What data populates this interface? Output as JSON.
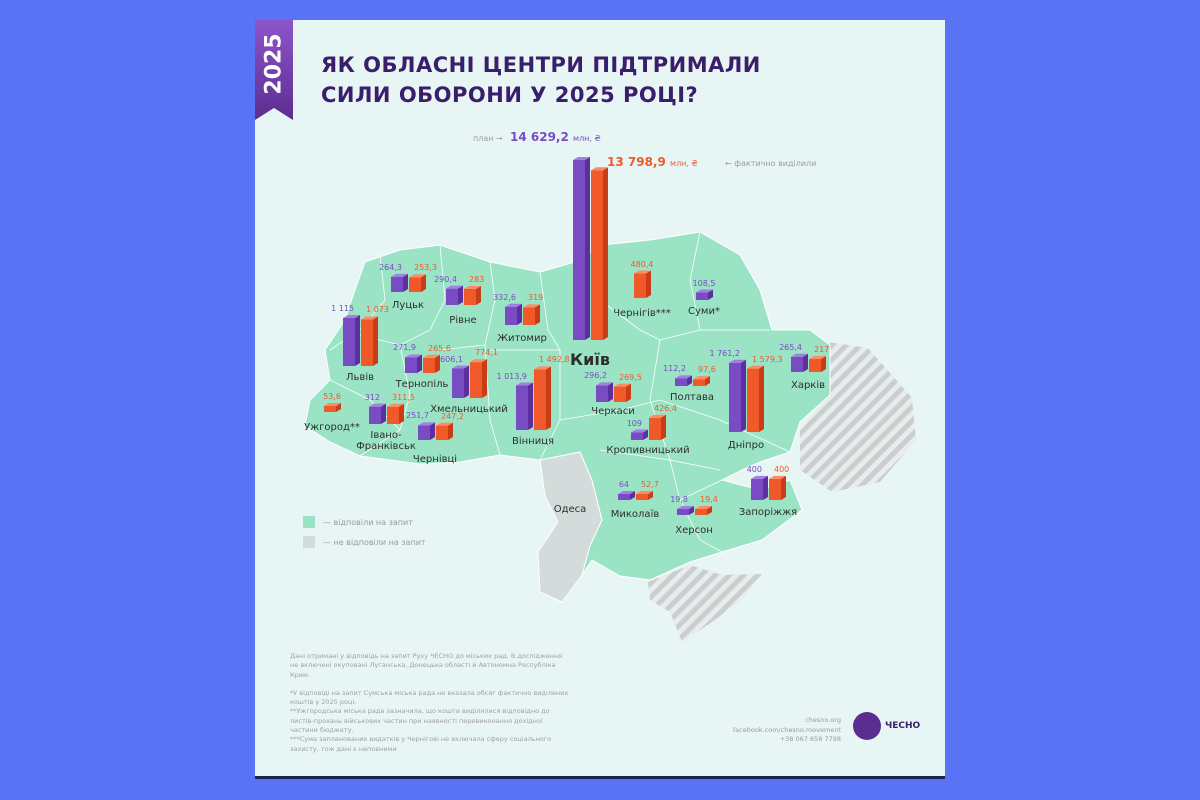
{
  "badge_year": "2025",
  "title": {
    "line1": "ЯК ОБЛАСНІ ЦЕНТРИ ПІДТРИМАЛИ",
    "line2": "СИЛИ ОБОРОНИ У 2025 РОЦІ?"
  },
  "totals": {
    "plan_note": "план →",
    "plan_value": "14 629,2",
    "actual_value": "13 798,9",
    "unit": "млн, ₴",
    "actual_note": "← фактично виділили"
  },
  "colors": {
    "plan": "#7a4cc4",
    "actual": "#f05a2a",
    "responded": "#9ae3c4",
    "not_responded": "#d3dcda",
    "background": "#e7f6f4"
  },
  "legend": [
    {
      "label": "— відповіли на запит",
      "color": "#9ae3c4"
    },
    {
      "label": "— не відповіли на запит",
      "color": "#d3dcda"
    }
  ],
  "non_responding_city": "Одеса",
  "chart_data": {
    "type": "bar",
    "title": "ЯК ОБЛАСНІ ЦЕНТРИ ПІДТРИМАЛИ СИЛИ ОБОРОНИ У 2025 РОЦІ?",
    "categories": [
      "Київ",
      "Луцьк",
      "Рівне",
      "Житомир",
      "Львів",
      "Тернопіль",
      "Хмельницький",
      "Вінниця",
      "Ужгород**",
      "Івано-Франківськ",
      "Чернівці",
      "Чернігів***",
      "Суми*",
      "Черкаси",
      "Полтава",
      "Кропивницький",
      "Дніпро",
      "Харків",
      "Запоріжжя",
      "Миколаїв",
      "Херсон"
    ],
    "series": [
      {
        "key": "plan",
        "values": [
          14629.2,
          264.3,
          290.4,
          332.6,
          1115,
          271.9,
          606.1,
          1013.9,
          null,
          312,
          251.7,
          null,
          108.5,
          296.2,
          112.2,
          109,
          1761.2,
          265.4,
          400,
          64,
          19.8
        ],
        "labels": [
          "14 629,2",
          "264,3",
          "290,4",
          "332,6",
          "1 115",
          "271,9",
          "606,1",
          "1 013,9",
          null,
          "312",
          "251,7",
          null,
          "108,5",
          "296,2",
          "112,2",
          "109",
          "1 761,2",
          "265,4",
          "400",
          "64",
          "19,8"
        ]
      },
      {
        "key": "actual",
        "values": [
          13798.9,
          253.3,
          283,
          319,
          1073,
          265.6,
          774.1,
          1492.8,
          53.6,
          311.5,
          247.2,
          480.4,
          null,
          269.5,
          97.6,
          426.4,
          1579.3,
          217,
          400,
          52.7,
          19.4
        ],
        "labels": [
          "13 798,9",
          "253,3",
          "283",
          "319",
          "1 073",
          "265,6",
          "774,1",
          "1 492,8",
          "53,6",
          "311,5",
          "247,2",
          "480,4",
          null,
          "269,5",
          "97,6",
          "426,4",
          "1 579,3",
          "217",
          "400",
          "52,7",
          "19,4"
        ]
      }
    ],
    "unit": "млн, ₴"
  },
  "footnotes": [
    "Дані отримані у відповідь на запит Руху ЧЕСНО до міських рад. В дослідження не включені окуповані Луганська, Донецька області й Автономна Республіка Крим.",
    "*У відповіді на запит Сумська міська рада не вказала обсяг фактично виділених коштів у 2025 році.",
    "**Ужгородська міська рада зазначила, що кошти виділялися відповідно до листів-прохань військових частин при наявності перевиконання дохідної частини бюджету.",
    "***Сума запланованих видатків у Чернігові не включала сферу соціального захисту, тож дані є неповними"
  ],
  "contact": {
    "site": "chesno.org",
    "facebook": "facebook.com/chesno.movement",
    "phone": "+38 067 658 7798"
  },
  "logo_text": "ЧЕСНО"
}
